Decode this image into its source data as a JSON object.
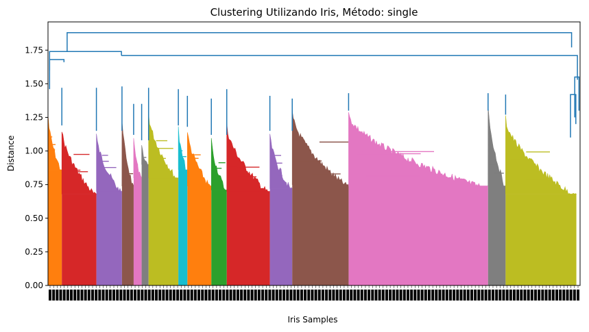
{
  "chart_data": {
    "type": "dendrogram",
    "title": "Clustering Utilizando Iris, Método: single",
    "xlabel": "Iris Samples",
    "ylabel": "Distance",
    "ylim": [
      0,
      1.96
    ],
    "yticks": [
      0.0,
      0.25,
      0.5,
      0.75,
      1.0,
      1.25,
      1.5,
      1.75
    ],
    "ytick_labels": [
      "0.00",
      "0.25",
      "0.50",
      "0.75",
      "1.00",
      "1.25",
      "1.50",
      "1.75"
    ],
    "grid": false,
    "link_color": "#1f77b4",
    "clusters": [
      {
        "color": "#ff7f0e",
        "x_start": 0.0,
        "x_end": 0.026,
        "top": 1.29,
        "bottom": 0.86
      },
      {
        "color": "#d62728",
        "x_start": 0.026,
        "x_end": 0.091,
        "top": 1.19,
        "bottom": 0.68
      },
      {
        "color": "#9467bd",
        "x_start": 0.091,
        "x_end": 0.139,
        "top": 1.15,
        "bottom": 0.7
      },
      {
        "color": "#8c564b",
        "x_start": 0.139,
        "x_end": 0.161,
        "top": 1.27,
        "bottom": 0.74
      },
      {
        "color": "#e377c2",
        "x_start": 0.161,
        "x_end": 0.176,
        "top": 1.12,
        "bottom": 0.8
      },
      {
        "color": "#7f7f7f",
        "x_start": 0.176,
        "x_end": 0.189,
        "top": 1.08,
        "bottom": 0.9
      },
      {
        "color": "#bcbd22",
        "x_start": 0.189,
        "x_end": 0.245,
        "top": 1.31,
        "bottom": 0.8
      },
      {
        "color": "#17becf",
        "x_start": 0.245,
        "x_end": 0.262,
        "top": 1.19,
        "bottom": 0.86
      },
      {
        "color": "#ff7f0e",
        "x_start": 0.262,
        "x_end": 0.307,
        "top": 1.18,
        "bottom": 0.74
      },
      {
        "color": "#2ca02c",
        "x_start": 0.307,
        "x_end": 0.336,
        "top": 1.12,
        "bottom": 0.71
      },
      {
        "color": "#d62728",
        "x_start": 0.336,
        "x_end": 0.417,
        "top": 1.22,
        "bottom": 0.7
      },
      {
        "color": "#9467bd",
        "x_start": 0.417,
        "x_end": 0.459,
        "top": 1.15,
        "bottom": 0.72
      },
      {
        "color": "#8c564b",
        "x_start": 0.459,
        "x_end": 0.565,
        "top": 1.31,
        "bottom": 0.75
      },
      {
        "color": "#e377c2",
        "x_start": 0.565,
        "x_end": 0.827,
        "top": 1.3,
        "bottom": 0.74
      },
      {
        "color": "#7f7f7f",
        "x_start": 0.827,
        "x_end": 0.86,
        "top": 1.38,
        "bottom": 0.74
      },
      {
        "color": "#bcbd22",
        "x_start": 0.86,
        "x_end": 0.993,
        "top": 1.27,
        "bottom": 0.68
      }
    ],
    "top_link_height": 1.88
  }
}
